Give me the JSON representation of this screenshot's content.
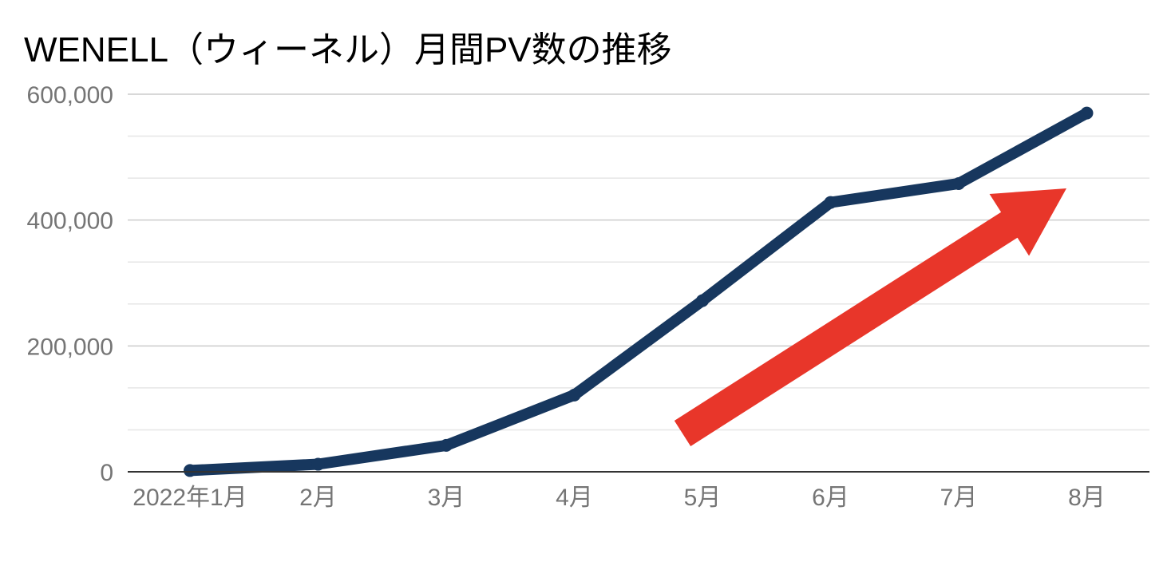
{
  "chart_data": {
    "type": "line",
    "title": "WENELL（ウィーネル）月間PV数の推移",
    "xlabel": "",
    "ylabel": "",
    "categories": [
      "2022年1月",
      "2月",
      "3月",
      "4月",
      "5月",
      "6月",
      "7月",
      "8月"
    ],
    "series": [
      {
        "values": [
          2000,
          12000,
          42000,
          122000,
          272000,
          428000,
          458000,
          570000
        ],
        "color": "#17375e"
      }
    ],
    "ylim": [
      0,
      600000
    ],
    "y_ticks": [
      0,
      200000,
      400000,
      600000
    ],
    "y_tick_labels": [
      "0",
      "200,000",
      "400,000",
      "600,000"
    ],
    "minor_gridlines": true,
    "grid": true,
    "legend": "none",
    "annotations": [
      {
        "type": "arrow",
        "meaning": "upward trend",
        "color": "#e8362a"
      }
    ],
    "colors": {
      "line": "#17375e",
      "arrow": "#e8362a",
      "gridline": "#cccccc",
      "minor_gridline": "#e6e6e6",
      "axis": "#333333",
      "tick_text": "#757575"
    }
  }
}
